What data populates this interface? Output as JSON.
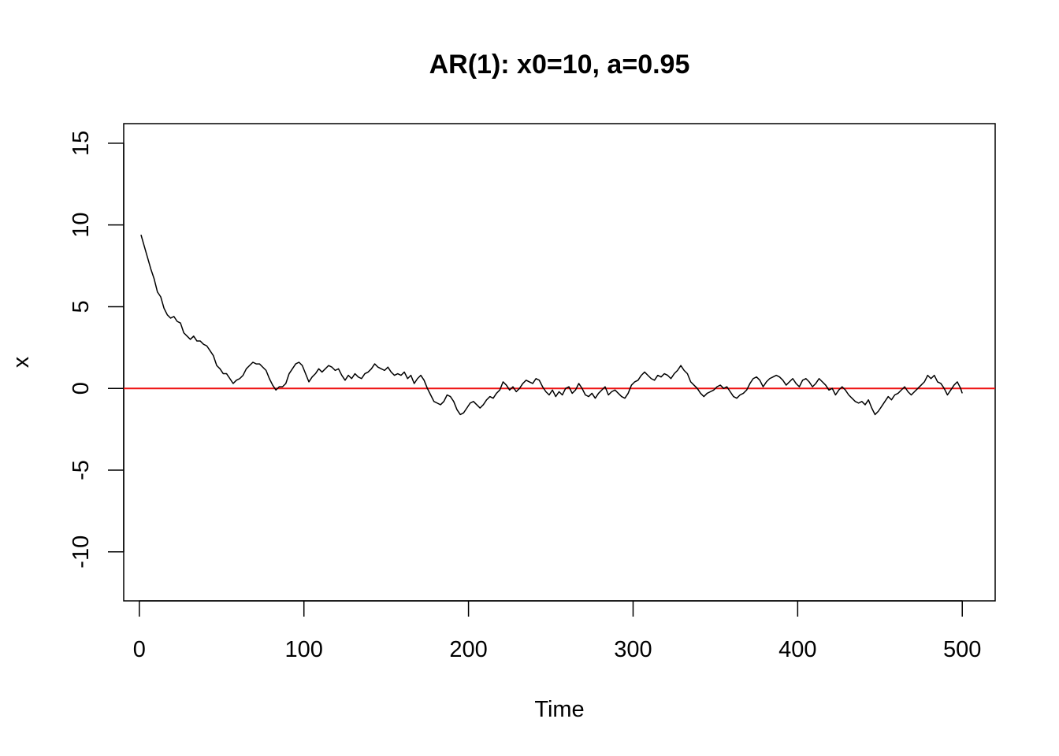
{
  "chart_data": {
    "type": "line",
    "title": "AR(1): x0=10, a=0.95",
    "xlabel": "Time",
    "ylabel": "x",
    "xlim": [
      -9.5,
      520
    ],
    "ylim": [
      -13,
      16.2
    ],
    "x_ticks": [
      0,
      100,
      200,
      300,
      400,
      500
    ],
    "y_ticks": [
      -10,
      -5,
      0,
      5,
      10,
      15
    ],
    "x_tick_labels": [
      "0",
      "100",
      "200",
      "300",
      "400",
      "500"
    ],
    "y_tick_labels": [
      "-10",
      "-5",
      "0",
      "5",
      "10",
      "15"
    ],
    "grid": false,
    "legend": "none",
    "reference_line": {
      "y": 0,
      "color": "#ee1111"
    },
    "series": [
      {
        "color": "#000000",
        "points": [
          [
            1,
            9.4
          ],
          [
            3,
            8.7
          ],
          [
            5,
            8.0
          ],
          [
            7,
            7.3
          ],
          [
            9,
            6.7
          ],
          [
            11,
            5.9
          ],
          [
            13,
            5.6
          ],
          [
            15,
            4.9
          ],
          [
            17,
            4.5
          ],
          [
            19,
            4.3
          ],
          [
            21,
            4.4
          ],
          [
            23,
            4.1
          ],
          [
            25,
            4.0
          ],
          [
            27,
            3.4
          ],
          [
            29,
            3.2
          ],
          [
            31,
            3.0
          ],
          [
            33,
            3.2
          ],
          [
            35,
            2.9
          ],
          [
            37,
            2.9
          ],
          [
            39,
            2.7
          ],
          [
            41,
            2.6
          ],
          [
            43,
            2.3
          ],
          [
            45,
            2.0
          ],
          [
            47,
            1.4
          ],
          [
            49,
            1.2
          ],
          [
            51,
            0.9
          ],
          [
            53,
            0.9
          ],
          [
            55,
            0.6
          ],
          [
            57,
            0.3
          ],
          [
            59,
            0.5
          ],
          [
            61,
            0.6
          ],
          [
            63,
            0.8
          ],
          [
            65,
            1.2
          ],
          [
            67,
            1.4
          ],
          [
            69,
            1.6
          ],
          [
            71,
            1.5
          ],
          [
            73,
            1.5
          ],
          [
            75,
            1.3
          ],
          [
            77,
            1.1
          ],
          [
            79,
            0.6
          ],
          [
            81,
            0.2
          ],
          [
            83,
            -0.1
          ],
          [
            85,
            0.1
          ],
          [
            87,
            0.1
          ],
          [
            89,
            0.3
          ],
          [
            91,
            0.9
          ],
          [
            93,
            1.2
          ],
          [
            95,
            1.5
          ],
          [
            97,
            1.6
          ],
          [
            99,
            1.4
          ],
          [
            101,
            0.9
          ],
          [
            103,
            0.4
          ],
          [
            105,
            0.7
          ],
          [
            107,
            0.9
          ],
          [
            109,
            1.2
          ],
          [
            111,
            1.0
          ],
          [
            113,
            1.2
          ],
          [
            115,
            1.4
          ],
          [
            117,
            1.3
          ],
          [
            119,
            1.1
          ],
          [
            121,
            1.2
          ],
          [
            123,
            0.8
          ],
          [
            125,
            0.5
          ],
          [
            127,
            0.8
          ],
          [
            129,
            0.6
          ],
          [
            131,
            0.9
          ],
          [
            133,
            0.7
          ],
          [
            135,
            0.6
          ],
          [
            137,
            0.9
          ],
          [
            139,
            1.0
          ],
          [
            141,
            1.2
          ],
          [
            143,
            1.5
          ],
          [
            145,
            1.3
          ],
          [
            147,
            1.2
          ],
          [
            149,
            1.1
          ],
          [
            151,
            1.3
          ],
          [
            153,
            1.0
          ],
          [
            155,
            0.8
          ],
          [
            157,
            0.9
          ],
          [
            159,
            0.8
          ],
          [
            161,
            1.0
          ],
          [
            163,
            0.6
          ],
          [
            165,
            0.8
          ],
          [
            167,
            0.3
          ],
          [
            169,
            0.6
          ],
          [
            171,
            0.8
          ],
          [
            173,
            0.5
          ],
          [
            175,
            0.0
          ],
          [
            177,
            -0.4
          ],
          [
            179,
            -0.8
          ],
          [
            181,
            -0.9
          ],
          [
            183,
            -1.0
          ],
          [
            185,
            -0.8
          ],
          [
            187,
            -0.4
          ],
          [
            189,
            -0.5
          ],
          [
            191,
            -0.8
          ],
          [
            193,
            -1.3
          ],
          [
            195,
            -1.6
          ],
          [
            197,
            -1.5
          ],
          [
            199,
            -1.2
          ],
          [
            201,
            -0.9
          ],
          [
            203,
            -0.8
          ],
          [
            205,
            -1.0
          ],
          [
            207,
            -1.2
          ],
          [
            209,
            -1.0
          ],
          [
            211,
            -0.7
          ],
          [
            213,
            -0.5
          ],
          [
            215,
            -0.6
          ],
          [
            217,
            -0.3
          ],
          [
            219,
            -0.1
          ],
          [
            221,
            0.4
          ],
          [
            223,
            0.2
          ],
          [
            225,
            -0.1
          ],
          [
            227,
            0.1
          ],
          [
            229,
            -0.2
          ],
          [
            231,
            0.0
          ],
          [
            233,
            0.3
          ],
          [
            235,
            0.5
          ],
          [
            237,
            0.4
          ],
          [
            239,
            0.3
          ],
          [
            241,
            0.6
          ],
          [
            243,
            0.5
          ],
          [
            245,
            0.1
          ],
          [
            247,
            -0.2
          ],
          [
            249,
            -0.4
          ],
          [
            251,
            -0.1
          ],
          [
            253,
            -0.5
          ],
          [
            255,
            -0.2
          ],
          [
            257,
            -0.4
          ],
          [
            259,
            0.0
          ],
          [
            261,
            0.1
          ],
          [
            263,
            -0.3
          ],
          [
            265,
            -0.1
          ],
          [
            267,
            0.3
          ],
          [
            269,
            0.0
          ],
          [
            271,
            -0.4
          ],
          [
            273,
            -0.5
          ],
          [
            275,
            -0.3
          ],
          [
            277,
            -0.6
          ],
          [
            279,
            -0.3
          ],
          [
            281,
            -0.1
          ],
          [
            283,
            0.1
          ],
          [
            285,
            -0.4
          ],
          [
            287,
            -0.2
          ],
          [
            289,
            -0.1
          ],
          [
            291,
            -0.3
          ],
          [
            293,
            -0.5
          ],
          [
            295,
            -0.6
          ],
          [
            297,
            -0.3
          ],
          [
            299,
            0.2
          ],
          [
            301,
            0.4
          ],
          [
            303,
            0.5
          ],
          [
            305,
            0.8
          ],
          [
            307,
            1.0
          ],
          [
            309,
            0.8
          ],
          [
            311,
            0.6
          ],
          [
            313,
            0.5
          ],
          [
            315,
            0.8
          ],
          [
            317,
            0.7
          ],
          [
            319,
            0.9
          ],
          [
            321,
            0.8
          ],
          [
            323,
            0.6
          ],
          [
            325,
            0.9
          ],
          [
            327,
            1.1
          ],
          [
            329,
            1.4
          ],
          [
            331,
            1.1
          ],
          [
            333,
            0.9
          ],
          [
            335,
            0.4
          ],
          [
            337,
            0.2
          ],
          [
            339,
            0.0
          ],
          [
            341,
            -0.3
          ],
          [
            343,
            -0.5
          ],
          [
            345,
            -0.3
          ],
          [
            347,
            -0.2
          ],
          [
            349,
            -0.1
          ],
          [
            351,
            0.1
          ],
          [
            353,
            0.2
          ],
          [
            355,
            0.0
          ],
          [
            357,
            0.1
          ],
          [
            359,
            -0.2
          ],
          [
            361,
            -0.5
          ],
          [
            363,
            -0.6
          ],
          [
            365,
            -0.4
          ],
          [
            367,
            -0.3
          ],
          [
            369,
            -0.1
          ],
          [
            371,
            0.3
          ],
          [
            373,
            0.6
          ],
          [
            375,
            0.7
          ],
          [
            377,
            0.5
          ],
          [
            379,
            0.1
          ],
          [
            381,
            0.4
          ],
          [
            383,
            0.6
          ],
          [
            385,
            0.7
          ],
          [
            387,
            0.8
          ],
          [
            389,
            0.7
          ],
          [
            391,
            0.5
          ],
          [
            393,
            0.2
          ],
          [
            395,
            0.4
          ],
          [
            397,
            0.6
          ],
          [
            399,
            0.3
          ],
          [
            401,
            0.1
          ],
          [
            403,
            0.5
          ],
          [
            405,
            0.6
          ],
          [
            407,
            0.4
          ],
          [
            409,
            0.1
          ],
          [
            411,
            0.3
          ],
          [
            413,
            0.6
          ],
          [
            415,
            0.4
          ],
          [
            417,
            0.2
          ],
          [
            419,
            -0.1
          ],
          [
            421,
            0.0
          ],
          [
            423,
            -0.4
          ],
          [
            425,
            -0.1
          ],
          [
            427,
            0.1
          ],
          [
            429,
            -0.1
          ],
          [
            431,
            -0.4
          ],
          [
            433,
            -0.6
          ],
          [
            435,
            -0.8
          ],
          [
            437,
            -0.9
          ],
          [
            439,
            -0.8
          ],
          [
            441,
            -1.0
          ],
          [
            443,
            -0.7
          ],
          [
            445,
            -1.2
          ],
          [
            447,
            -1.6
          ],
          [
            449,
            -1.4
          ],
          [
            451,
            -1.1
          ],
          [
            453,
            -0.8
          ],
          [
            455,
            -0.5
          ],
          [
            457,
            -0.7
          ],
          [
            459,
            -0.4
          ],
          [
            461,
            -0.3
          ],
          [
            463,
            -0.1
          ],
          [
            465,
            0.1
          ],
          [
            467,
            -0.2
          ],
          [
            469,
            -0.4
          ],
          [
            471,
            -0.2
          ],
          [
            473,
            0.0
          ],
          [
            475,
            0.2
          ],
          [
            477,
            0.4
          ],
          [
            479,
            0.8
          ],
          [
            481,
            0.6
          ],
          [
            483,
            0.8
          ],
          [
            485,
            0.4
          ],
          [
            487,
            0.3
          ],
          [
            489,
            0.0
          ],
          [
            491,
            -0.4
          ],
          [
            493,
            -0.1
          ],
          [
            495,
            0.2
          ],
          [
            497,
            0.4
          ],
          [
            499,
            0.0
          ],
          [
            500,
            -0.3
          ]
        ]
      }
    ]
  }
}
